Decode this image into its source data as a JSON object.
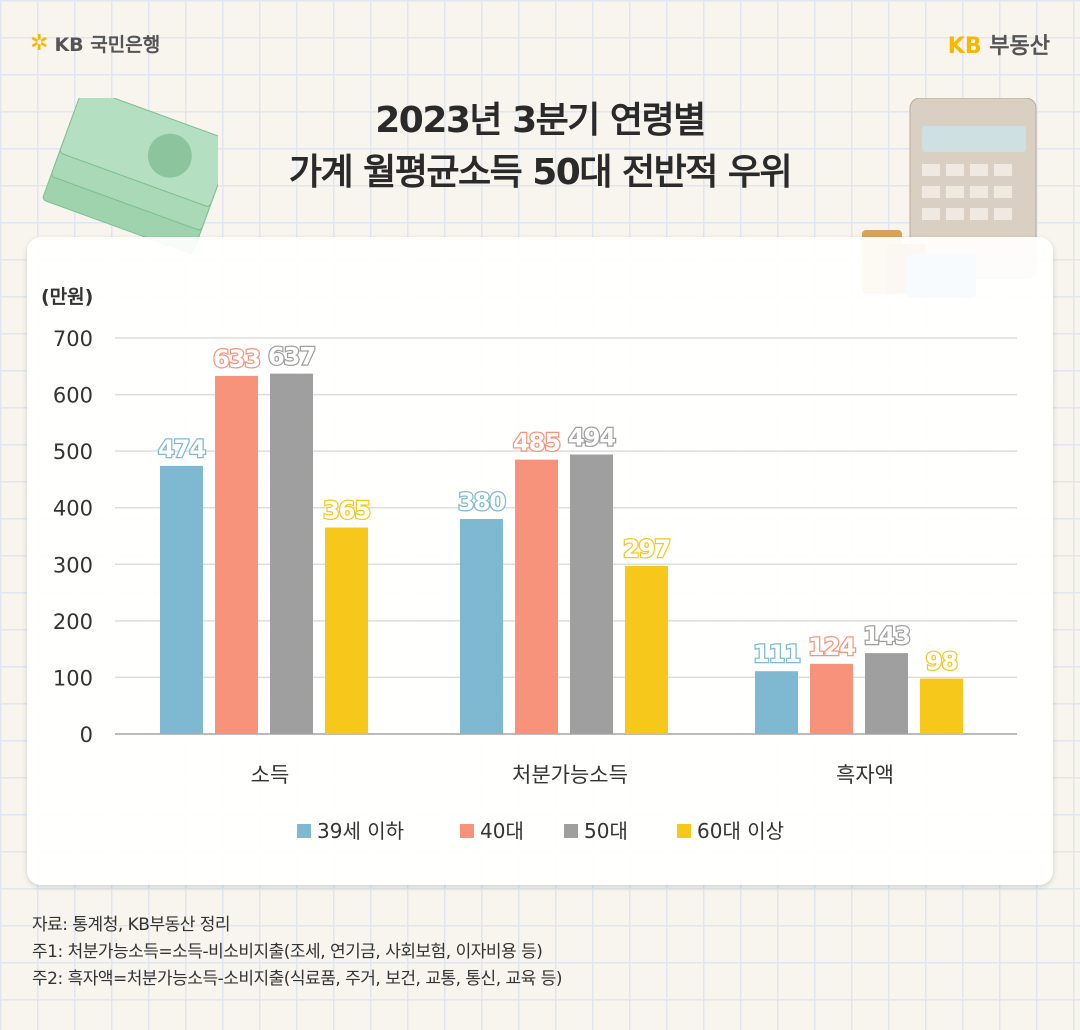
{
  "header": {
    "left_logo": "KB 국민은행",
    "right_logo_kb": "KB",
    "right_logo_text": "부동산"
  },
  "title": {
    "line1": "2023년 3분기 연령별",
    "line2": "가계 월평균소득 50대 전반적 우위"
  },
  "chart_data": {
    "type": "bar",
    "unit_label": "(만원)",
    "categories": [
      "소득",
      "처분가능소득",
      "흑자액"
    ],
    "ylim": [
      0,
      700
    ],
    "yticks": [
      0,
      100,
      200,
      300,
      400,
      500,
      600,
      700
    ],
    "grid": true,
    "legend_position": "bottom",
    "series": [
      {
        "name": "39세 이하",
        "color": "#7fb8d1",
        "values": [
          474,
          380,
          111
        ]
      },
      {
        "name": "40대",
        "color": "#f7937b",
        "values": [
          633,
          485,
          124
        ]
      },
      {
        "name": "50대",
        "color": "#9f9f9f",
        "values": [
          637,
          494,
          143
        ]
      },
      {
        "name": "60대 이상",
        "color": "#f6c81c",
        "values": [
          365,
          297,
          98
        ]
      }
    ]
  },
  "notes": [
    "자료: 통계청, KB부동산 정리",
    "주1: 처분가능소득=소득-비소비지출(조세, 연기금, 사회보험, 이자비용 등)",
    "주2: 흑자액=처분가능소득-소비지출(식료품, 주거, 보건, 교통, 통신, 교육 등)"
  ]
}
